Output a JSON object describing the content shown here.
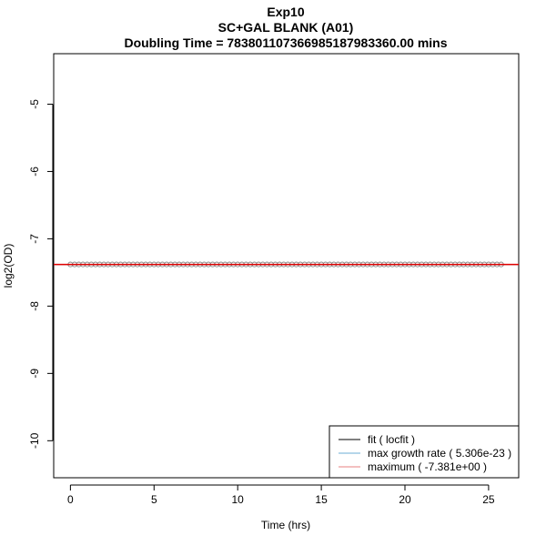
{
  "chart_data": {
    "type": "scatter",
    "title_lines": [
      "Exp10",
      "SC+GAL BLANK (A01)",
      "Doubling Time = 783801107366985187983360.00 mins"
    ],
    "xlabel": "Time (hrs)",
    "ylabel": "log2(OD)",
    "xlim": [
      -1,
      26.8
    ],
    "ylim": [
      -10.55,
      -4.25
    ],
    "xticks": [
      0,
      5,
      10,
      15,
      20,
      25
    ],
    "yticks": [
      -10,
      -9,
      -8,
      -7,
      -6,
      -5
    ],
    "xtick_labels": [
      "0",
      "5",
      "10",
      "15",
      "20",
      "25"
    ],
    "ytick_labels": [
      "-10",
      "-9",
      "-8",
      "-7",
      "-6",
      "-5"
    ],
    "points": {
      "x_start": 0,
      "x_end": 25.75,
      "x_step": 0.25,
      "y": -7.381,
      "marker": "open-circle",
      "color": "#888888"
    },
    "lines": [
      {
        "name": "fit ( locfit )",
        "type": "fit",
        "y": -7.381,
        "color": "#000000"
      },
      {
        "name": "max growth rate ( 5.306e-23 )",
        "type": "growth-rate",
        "y": -7.381,
        "color": "#6baed6"
      },
      {
        "name": "maximum ( -7.381e+00 )",
        "type": "maximum",
        "y": -7.381,
        "color": "#e00000"
      }
    ],
    "legend": {
      "placement": "bottom-right",
      "entries": [
        {
          "label": "fit ( locfit )",
          "color": "#000000"
        },
        {
          "label": "max growth rate ( 5.306e-23 )",
          "color": "#6baed6"
        },
        {
          "label": "maximum ( -7.381e+00 )",
          "color": "#e88080"
        }
      ]
    }
  }
}
